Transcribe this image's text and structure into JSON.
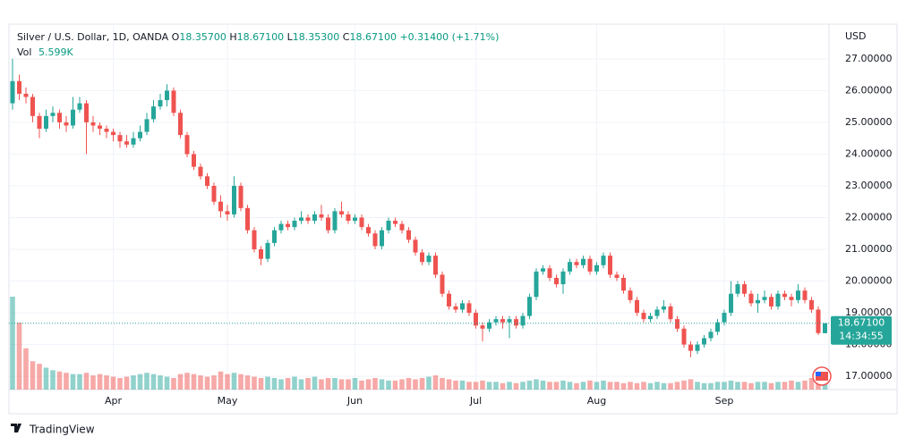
{
  "chart_data": {
    "type": "candlestick",
    "legend": {
      "symbol": "Silver / U.S. Dollar, 1D, OANDA",
      "open_label": "O",
      "open": "18.35700",
      "high_label": "H",
      "high": "18.67100",
      "low_label": "L",
      "low": "18.35300",
      "close_label": "C",
      "close": "18.67100",
      "change": "+0.31400 (+1.71%)",
      "volume_label": "Vol",
      "volume": "5.599K"
    },
    "currency": "USD",
    "last_price": {
      "value": 18.671,
      "label": "18.67100"
    },
    "countdown": "14:34:55",
    "brand": "TradingView",
    "up_color": "#26a69a",
    "down_color": "#ef5350",
    "ylim": [
      16.58,
      28.01
    ],
    "yticks": [
      {
        "value": 17,
        "label": "17.00000"
      },
      {
        "value": 18,
        "label": "18.00000"
      },
      {
        "value": 19,
        "label": "19.00000"
      },
      {
        "value": 20,
        "label": "20.00000"
      },
      {
        "value": 21,
        "label": "21.00000"
      },
      {
        "value": 22,
        "label": "22.00000"
      },
      {
        "value": 23,
        "label": "23.00000"
      },
      {
        "value": 24,
        "label": "24.00000"
      },
      {
        "value": 25,
        "label": "25.00000"
      },
      {
        "value": 26,
        "label": "26.00000"
      },
      {
        "value": 27,
        "label": "27.00000"
      }
    ],
    "grid": true,
    "categories": [
      null,
      null,
      null,
      null,
      null,
      null,
      null,
      null,
      null,
      null,
      null,
      null,
      null,
      null,
      null,
      "Apr",
      null,
      null,
      null,
      null,
      null,
      null,
      null,
      null,
      null,
      null,
      null,
      null,
      null,
      null,
      null,
      null,
      "May",
      null,
      null,
      null,
      null,
      null,
      null,
      null,
      null,
      null,
      null,
      null,
      null,
      null,
      null,
      null,
      null,
      null,
      null,
      "Jun",
      null,
      null,
      null,
      null,
      null,
      null,
      null,
      null,
      null,
      null,
      null,
      null,
      null,
      null,
      null,
      null,
      null,
      "Jul",
      null,
      null,
      null,
      null,
      null,
      null,
      null,
      null,
      null,
      null,
      null,
      null,
      null,
      null,
      null,
      null,
      null,
      "Aug",
      null,
      null,
      null,
      null,
      null,
      null,
      null,
      null,
      null,
      null,
      null,
      null,
      null,
      null,
      null,
      null,
      null,
      null,
      "Sep",
      null,
      null,
      null,
      null,
      null,
      null,
      null,
      null,
      null,
      null,
      null,
      null,
      null,
      null,
      null
    ],
    "ohlc": [
      [
        25.6,
        27.0,
        25.4,
        26.3
      ],
      [
        26.3,
        26.5,
        25.7,
        25.9
      ],
      [
        25.9,
        26.1,
        25.6,
        25.8
      ],
      [
        25.8,
        25.9,
        25.0,
        25.2
      ],
      [
        25.2,
        25.3,
        24.5,
        24.8
      ],
      [
        24.8,
        25.4,
        24.7,
        25.2
      ],
      [
        25.2,
        25.5,
        25.0,
        25.3
      ],
      [
        25.3,
        25.4,
        24.8,
        25.0
      ],
      [
        25.0,
        25.2,
        24.7,
        24.9
      ],
      [
        24.9,
        25.8,
        24.8,
        25.4
      ],
      [
        25.4,
        25.8,
        25.3,
        25.6
      ],
      [
        25.6,
        25.7,
        24.0,
        25.0
      ],
      [
        25.0,
        25.2,
        24.7,
        24.9
      ],
      [
        24.9,
        25.0,
        24.6,
        24.8
      ],
      [
        24.8,
        24.9,
        24.5,
        24.7
      ],
      [
        24.7,
        24.8,
        24.4,
        24.6
      ],
      [
        24.6,
        24.7,
        24.2,
        24.4
      ],
      [
        24.4,
        24.6,
        24.2,
        24.3
      ],
      [
        24.3,
        24.7,
        24.2,
        24.5
      ],
      [
        24.5,
        24.9,
        24.4,
        24.7
      ],
      [
        24.7,
        25.3,
        24.6,
        25.1
      ],
      [
        25.1,
        25.7,
        25.0,
        25.5
      ],
      [
        25.5,
        25.9,
        25.4,
        25.7
      ],
      [
        25.7,
        26.2,
        25.5,
        26.0
      ],
      [
        26.0,
        26.1,
        25.2,
        25.3
      ],
      [
        25.3,
        25.4,
        24.5,
        24.6
      ],
      [
        24.6,
        24.7,
        23.9,
        24.0
      ],
      [
        24.0,
        24.1,
        23.5,
        23.6
      ],
      [
        23.6,
        23.7,
        23.2,
        23.3
      ],
      [
        23.3,
        23.4,
        22.9,
        23.0
      ],
      [
        23.0,
        23.1,
        22.4,
        22.5
      ],
      [
        22.5,
        22.7,
        22.0,
        22.2
      ],
      [
        22.2,
        22.4,
        21.9,
        22.1
      ],
      [
        22.1,
        23.3,
        22.0,
        23.0
      ],
      [
        23.0,
        23.1,
        22.2,
        22.3
      ],
      [
        22.3,
        22.4,
        21.5,
        21.6
      ],
      [
        21.6,
        21.7,
        20.9,
        21.0
      ],
      [
        21.0,
        21.1,
        20.5,
        20.7
      ],
      [
        20.7,
        21.3,
        20.6,
        21.2
      ],
      [
        21.2,
        21.7,
        21.1,
        21.6
      ],
      [
        21.6,
        21.9,
        21.5,
        21.8
      ],
      [
        21.8,
        21.9,
        21.6,
        21.7
      ],
      [
        21.7,
        22.0,
        21.6,
        21.9
      ],
      [
        21.9,
        22.2,
        21.8,
        22.0
      ],
      [
        22.0,
        22.1,
        21.8,
        21.9
      ],
      [
        21.9,
        22.2,
        21.8,
        22.1
      ],
      [
        22.1,
        22.4,
        21.9,
        22.0
      ],
      [
        22.0,
        22.1,
        21.5,
        21.6
      ],
      [
        21.6,
        22.3,
        21.5,
        22.2
      ],
      [
        22.2,
        22.5,
        22.0,
        22.1
      ],
      [
        22.1,
        22.2,
        21.8,
        21.9
      ],
      [
        21.9,
        22.1,
        21.8,
        22.0
      ],
      [
        22.0,
        22.1,
        21.6,
        21.7
      ],
      [
        21.7,
        21.8,
        21.4,
        21.5
      ],
      [
        21.5,
        21.6,
        21.0,
        21.1
      ],
      [
        21.1,
        21.7,
        21.0,
        21.6
      ],
      [
        21.6,
        22.0,
        21.5,
        21.9
      ],
      [
        21.9,
        22.0,
        21.7,
        21.8
      ],
      [
        21.8,
        21.9,
        21.5,
        21.6
      ],
      [
        21.6,
        21.7,
        21.2,
        21.3
      ],
      [
        21.3,
        21.4,
        20.8,
        20.9
      ],
      [
        20.9,
        21.0,
        20.5,
        20.6
      ],
      [
        20.6,
        20.9,
        20.5,
        20.8
      ],
      [
        20.8,
        20.9,
        20.1,
        20.2
      ],
      [
        20.2,
        20.3,
        19.5,
        19.6
      ],
      [
        19.6,
        19.7,
        19.1,
        19.2
      ],
      [
        19.2,
        19.3,
        19.0,
        19.1
      ],
      [
        19.1,
        19.4,
        19.0,
        19.3
      ],
      [
        19.3,
        19.4,
        18.9,
        19.0
      ],
      [
        19.0,
        19.1,
        18.5,
        18.6
      ],
      [
        18.6,
        18.7,
        18.1,
        18.5
      ],
      [
        18.5,
        18.8,
        18.4,
        18.7
      ],
      [
        18.7,
        18.9,
        18.6,
        18.8
      ],
      [
        18.8,
        18.9,
        18.5,
        18.7
      ],
      [
        18.7,
        18.9,
        18.2,
        18.8
      ],
      [
        18.8,
        18.9,
        18.5,
        18.6
      ],
      [
        18.6,
        19.0,
        18.5,
        18.9
      ],
      [
        18.9,
        19.6,
        18.8,
        19.5
      ],
      [
        19.5,
        20.4,
        19.4,
        20.3
      ],
      [
        20.3,
        20.5,
        20.2,
        20.4
      ],
      [
        20.4,
        20.5,
        20.0,
        20.1
      ],
      [
        20.1,
        20.2,
        19.8,
        19.9
      ],
      [
        19.9,
        20.4,
        19.6,
        20.3
      ],
      [
        20.3,
        20.7,
        20.2,
        20.6
      ],
      [
        20.6,
        20.7,
        20.4,
        20.5
      ],
      [
        20.5,
        20.8,
        20.4,
        20.7
      ],
      [
        20.7,
        20.8,
        20.2,
        20.3
      ],
      [
        20.3,
        20.6,
        20.2,
        20.5
      ],
      [
        20.5,
        20.9,
        20.4,
        20.8
      ],
      [
        20.8,
        20.9,
        20.1,
        20.2
      ],
      [
        20.2,
        20.3,
        20.0,
        20.1
      ],
      [
        20.1,
        20.2,
        19.6,
        19.7
      ],
      [
        19.7,
        19.8,
        19.3,
        19.4
      ],
      [
        19.4,
        19.5,
        18.9,
        19.0
      ],
      [
        19.0,
        19.1,
        18.7,
        18.8
      ],
      [
        18.8,
        19.0,
        18.7,
        18.9
      ],
      [
        18.9,
        19.2,
        18.8,
        19.1
      ],
      [
        19.1,
        19.4,
        19.0,
        19.2
      ],
      [
        19.2,
        19.3,
        18.7,
        18.8
      ],
      [
        18.8,
        18.9,
        18.4,
        18.5
      ],
      [
        18.5,
        18.6,
        17.9,
        18.0
      ],
      [
        18.0,
        18.1,
        17.6,
        17.8
      ],
      [
        17.8,
        18.1,
        17.7,
        18.0
      ],
      [
        18.0,
        18.3,
        17.9,
        18.2
      ],
      [
        18.2,
        18.5,
        18.1,
        18.4
      ],
      [
        18.4,
        18.8,
        18.3,
        18.7
      ],
      [
        18.7,
        19.1,
        18.6,
        19.0
      ],
      [
        19.0,
        20.0,
        18.9,
        19.6
      ],
      [
        19.6,
        20.0,
        19.5,
        19.9
      ],
      [
        19.9,
        20.0,
        19.5,
        19.6
      ],
      [
        19.6,
        19.7,
        19.2,
        19.3
      ],
      [
        19.3,
        19.6,
        19.0,
        19.4
      ],
      [
        19.4,
        19.7,
        19.3,
        19.5
      ],
      [
        19.5,
        19.6,
        19.1,
        19.2
      ],
      [
        19.2,
        19.7,
        19.1,
        19.6
      ],
      [
        19.6,
        19.7,
        19.4,
        19.5
      ],
      [
        19.5,
        19.6,
        19.2,
        19.4
      ],
      [
        19.4,
        19.9,
        19.3,
        19.7
      ],
      [
        19.7,
        19.8,
        19.3,
        19.4
      ],
      [
        19.4,
        19.5,
        19.0,
        19.1
      ],
      [
        19.1,
        19.2,
        18.3,
        18.36
      ],
      [
        18.357,
        18.671,
        18.353,
        18.671
      ]
    ],
    "volume": [
      72,
      52,
      32,
      22,
      20,
      17,
      15,
      14,
      13,
      12,
      12,
      13,
      11,
      12,
      11,
      10,
      9,
      10,
      11,
      12,
      13,
      12,
      11,
      10,
      9,
      12,
      13,
      12,
      11,
      10,
      11,
      14,
      12,
      13,
      12,
      11,
      10,
      9,
      10,
      9,
      8,
      9,
      10,
      8,
      9,
      10,
      8,
      9,
      9,
      8,
      8,
      9,
      7,
      8,
      9,
      8,
      7,
      7,
      8,
      9,
      8,
      9,
      10,
      11,
      9,
      8,
      7,
      7,
      6,
      6,
      7,
      6,
      6,
      5,
      6,
      5,
      6,
      7,
      8,
      7,
      6,
      6,
      7,
      6,
      5,
      6,
      7,
      6,
      7,
      6,
      6,
      5,
      6,
      5,
      6,
      5,
      6,
      5,
      5,
      6,
      7,
      8,
      6,
      5,
      5,
      6,
      6,
      7,
      6,
      6,
      5,
      6,
      6,
      5,
      6,
      6,
      7,
      6,
      7,
      9,
      8,
      5.599
    ]
  }
}
